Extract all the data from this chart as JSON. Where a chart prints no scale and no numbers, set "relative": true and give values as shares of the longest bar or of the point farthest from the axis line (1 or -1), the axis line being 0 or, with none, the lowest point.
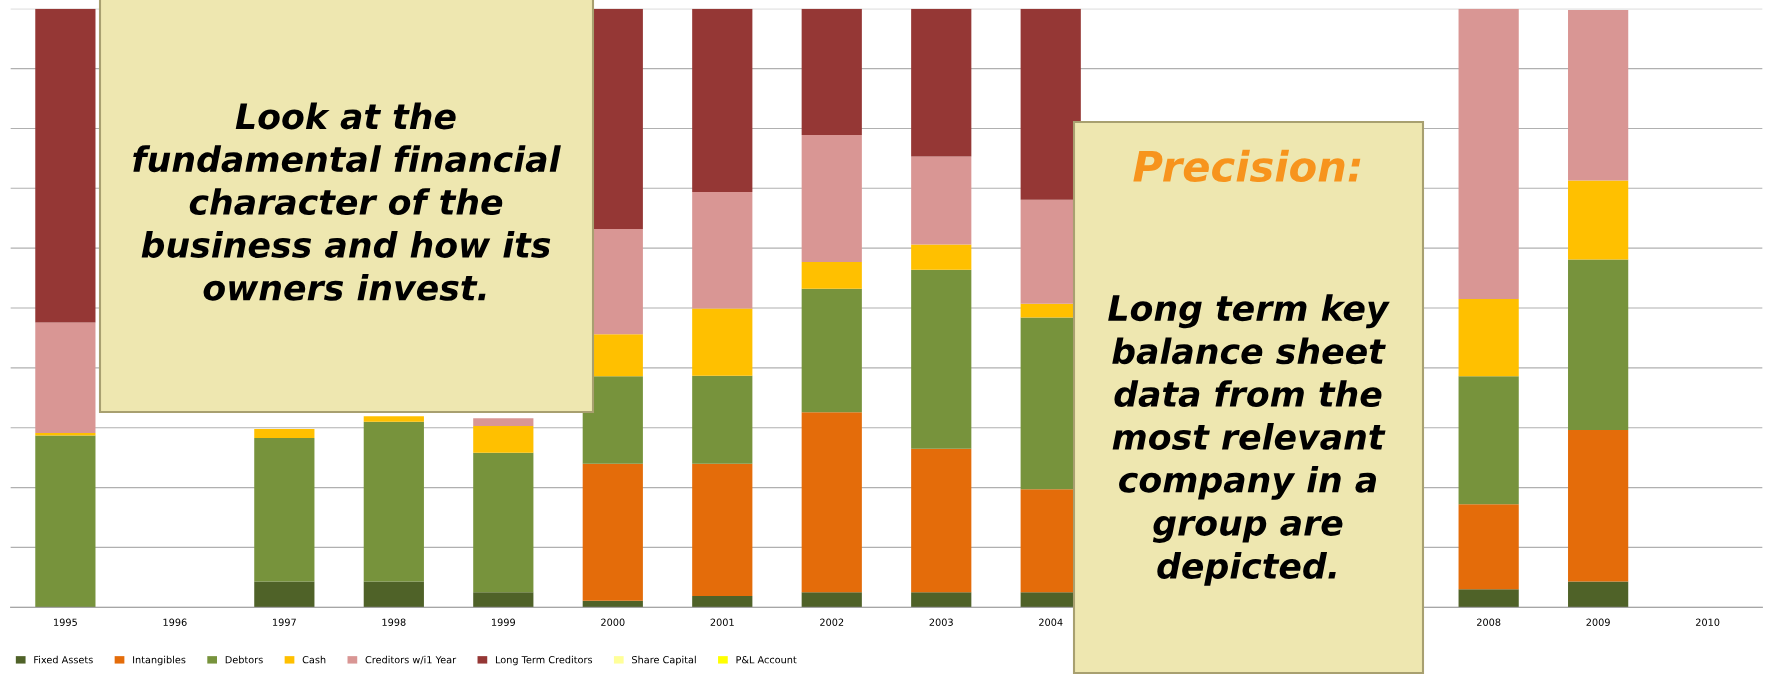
{
  "chart_data": {
    "type": "bar",
    "stacked": true,
    "relative": true,
    "grid": "y",
    "legend": "bottom",
    "categories": [
      "1995",
      "1996",
      "1997",
      "1998",
      "1999",
      "2000",
      "2001",
      "2002",
      "2003",
      "2004",
      null,
      null,
      null,
      "2008",
      "2009",
      "2010"
    ],
    "series": [
      {
        "name": "Fixed Assets",
        "color": "#4f6228",
        "values": [
          0,
          null,
          0.043,
          0.043,
          0.025,
          0.011,
          0.019,
          0.025,
          0.025,
          0.025,
          null,
          null,
          null,
          0.03,
          0.043,
          null
        ]
      },
      {
        "name": "Intangibles",
        "color": "#e46c0a",
        "values": [
          0,
          null,
          0,
          0,
          0,
          0.229,
          0.221,
          0.301,
          0.24,
          0.172,
          null,
          null,
          null,
          0.142,
          0.253,
          null
        ]
      },
      {
        "name": "Debtors",
        "color": "#77933c",
        "values": [
          0.287,
          null,
          0.24,
          0.267,
          0.233,
          0.146,
          0.147,
          0.206,
          0.299,
          0.287,
          null,
          null,
          null,
          0.214,
          0.285,
          null
        ]
      },
      {
        "name": "Cash",
        "color": "#ffc000",
        "values": [
          0.004,
          null,
          0.015,
          0.009,
          0.045,
          0.07,
          0.112,
          0.045,
          0.042,
          0.023,
          null,
          null,
          null,
          0.129,
          0.132,
          null
        ]
      },
      {
        "name": "Creditors w/i1 Year",
        "color": "#d99694",
        "values": [
          0.185,
          null,
          null,
          null,
          0.013,
          0.176,
          0.195,
          0.212,
          0.147,
          0.174,
          null,
          null,
          null,
          0.485,
          0.285,
          null
        ]
      },
      {
        "name": "Long Term Creditors",
        "color": "#953735",
        "values": [
          0.524,
          null,
          null,
          null,
          null,
          0.368,
          0.306,
          0.211,
          0.247,
          0.319,
          null,
          null,
          null,
          null,
          null,
          null
        ]
      },
      {
        "name": "Share Capital",
        "color": "#ffff99",
        "values": [
          null,
          null,
          null,
          null,
          null,
          null,
          null,
          null,
          null,
          null,
          null,
          null,
          null,
          null,
          null,
          null
        ]
      },
      {
        "name": "P&L Account",
        "color": "#ffff00",
        "values": [
          null,
          null,
          null,
          null,
          null,
          null,
          null,
          null,
          null,
          null,
          null,
          null,
          null,
          null,
          null,
          null
        ]
      }
    ],
    "annotations": [
      "Look at the\nfundamental financial\ncharacter of the\nbusiness and how its\nowners invest.",
      "Precision:",
      "Long term key\nbalance sheet\ndata from the\nmost relevant\ncompany in a\ngroup are\ndepicted."
    ]
  }
}
